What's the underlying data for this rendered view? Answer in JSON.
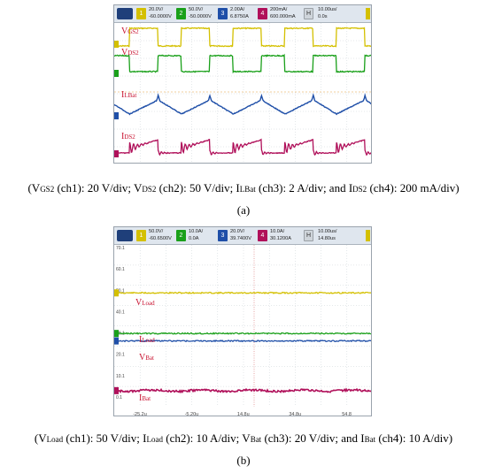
{
  "panel_a": {
    "channels": [
      {
        "code": "1",
        "scale": "20.0V/",
        "offset": "-60.0000V",
        "color": "#d4c000"
      },
      {
        "code": "2",
        "scale": "50.0V/",
        "offset": "-50.0000V",
        "color": "#1aa01a"
      },
      {
        "code": "3",
        "scale": "2.00A/",
        "offset": "6.8750A",
        "color": "#1f4fa8"
      },
      {
        "code": "4",
        "scale": "200mA/",
        "offset": "600.000mA",
        "color": "#b0105a"
      }
    ],
    "horizontal": {
      "button": "H",
      "scale": "10.00us/",
      "delay": "0.0s"
    },
    "trace_labels": [
      {
        "main": "V",
        "sub": "GS2"
      },
      {
        "main": "V",
        "sub": "DS2"
      },
      {
        "main": "I",
        "sub": "LBat"
      },
      {
        "main": "I",
        "sub": "DS2"
      }
    ],
    "caption": {
      "p1": "(V",
      "s1": "GS2",
      "p2": " (ch1): 20 V/div; V",
      "s2": "DS2",
      "p3": " (ch2): 50 V/div; I",
      "s3": "LBat",
      "p4": " (ch3): 2 A/div; and I",
      "s4": "DS2",
      "p5": " (ch4): 200 mA/div)"
    },
    "label": "(a)"
  },
  "panel_b": {
    "channels": [
      {
        "code": "1",
        "scale": "50.0V/",
        "offset": "-60.6500V",
        "color": "#d4c000"
      },
      {
        "code": "2",
        "scale": "10.0A/",
        "offset": "0.0A",
        "color": "#1aa01a"
      },
      {
        "code": "3",
        "scale": "20.0V/",
        "offset": "39.7400V",
        "color": "#1f4fa8"
      },
      {
        "code": "4",
        "scale": "10.0A/",
        "offset": "30.1200A",
        "color": "#b0105a"
      }
    ],
    "horizontal": {
      "button": "H",
      "scale": "10.00us/",
      "delay": "14.80us"
    },
    "trace_labels": [
      {
        "main": "V",
        "sub": "Load"
      },
      {
        "main": "I",
        "sub": "Load"
      },
      {
        "main": "V",
        "sub": "Bat"
      },
      {
        "main": "I",
        "sub": "Bat"
      }
    ],
    "caption": {
      "p1": "(V",
      "s1": "Load",
      "p2": " (ch1): 50 V/div; I",
      "s2": "Load",
      "p3": " (ch2): 10 A/div; V",
      "s3": "Bat",
      "p4": " (ch3): 20 V/div; and I",
      "s4": "Bat",
      "p5": " (ch4): 10 A/div)"
    },
    "label": "(b)"
  },
  "chart_data": [
    {
      "type": "line",
      "x_unit": "us",
      "x_range": [
        -50,
        50
      ],
      "time_per_div_us": 10,
      "grid": true,
      "series": [
        {
          "name": "VGS2",
          "channel": 1,
          "waveform": "square",
          "period_us": 20,
          "duty": 0.55,
          "low_div": 0.2,
          "high_div": 1.0
        },
        {
          "name": "VDS2",
          "channel": 2,
          "waveform": "square-complement",
          "period_us": 20,
          "duty": 0.55,
          "low_div": 0.0,
          "high_div": 0.8
        },
        {
          "name": "ILBat",
          "channel": 3,
          "waveform": "triangle",
          "period_us": 20,
          "duty": 0.55,
          "ripple_div": 0.8
        },
        {
          "name": "IDS2",
          "channel": 4,
          "waveform": "ramp-with-ringing",
          "period_us": 20,
          "duty": 0.55,
          "ripple_div": 0.8
        }
      ]
    },
    {
      "type": "line",
      "x_unit": "us",
      "x_range": [
        -35.2,
        64.8
      ],
      "grid": true,
      "x_tick_labels": [
        "-25.2u",
        "-5.20u",
        "14.8u",
        "34.8u",
        "54.8"
      ],
      "y_tick_labels": [
        "70.1",
        "60.1",
        "50.1",
        "40.1",
        "30.1",
        "20.1",
        "10.1",
        "0.1"
      ],
      "series": [
        {
          "name": "VLoad",
          "channel": 1,
          "waveform": "dc",
          "level": 50.1
        },
        {
          "name": "ILoad",
          "channel": 2,
          "waveform": "dc",
          "level": 31.1
        },
        {
          "name": "VBat",
          "channel": 3,
          "waveform": "dc",
          "level": 27.6
        },
        {
          "name": "IBat",
          "channel": 4,
          "waveform": "dc",
          "level": 4.3
        }
      ]
    }
  ]
}
